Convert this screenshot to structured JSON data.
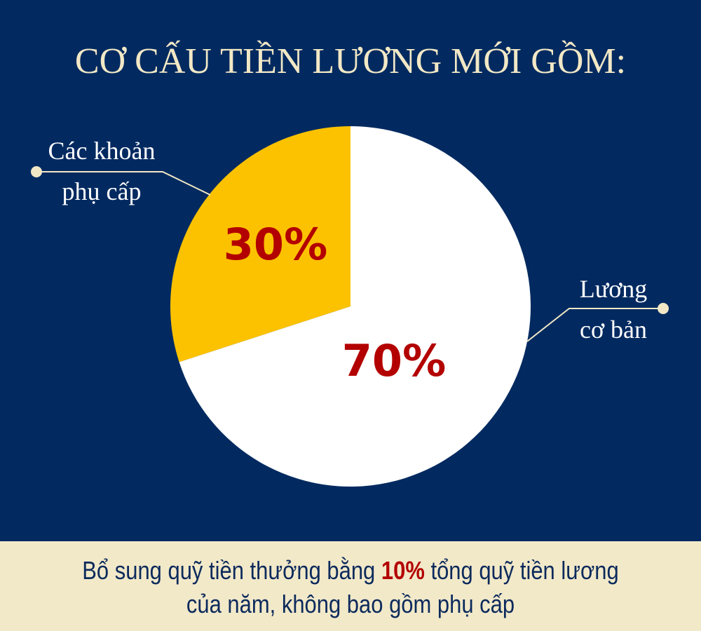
{
  "title": "CƠ CẤU TIỀN LƯƠNG MỚI GỒM:",
  "chart_data": {
    "type": "pie",
    "title": "CƠ CẤU TIỀN LƯƠNG MỚI GỒM:",
    "slices": [
      {
        "label_line1": "Các khoản",
        "label_line2": "phụ cấp",
        "value": 30,
        "value_label": "30%",
        "color": "#fcc200"
      },
      {
        "label_line1": "Lương",
        "label_line2": "cơ bản",
        "value": 70,
        "value_label": "70%",
        "color": "#ffffff"
      }
    ],
    "value_label_color": "#b30000"
  },
  "footer": {
    "line1_before": "Bổ sung quỹ tiền thưởng bằng ",
    "highlight": "10%",
    "line1_after": " tổng quỹ tiền lương",
    "line2": "của năm, không bao gồm phụ cấp"
  },
  "colors": {
    "background": "#022a60",
    "title": "#f2e8c6",
    "band": "#f2e9c9",
    "footer_text": "#0c2a5c",
    "accent": "#b30000"
  }
}
